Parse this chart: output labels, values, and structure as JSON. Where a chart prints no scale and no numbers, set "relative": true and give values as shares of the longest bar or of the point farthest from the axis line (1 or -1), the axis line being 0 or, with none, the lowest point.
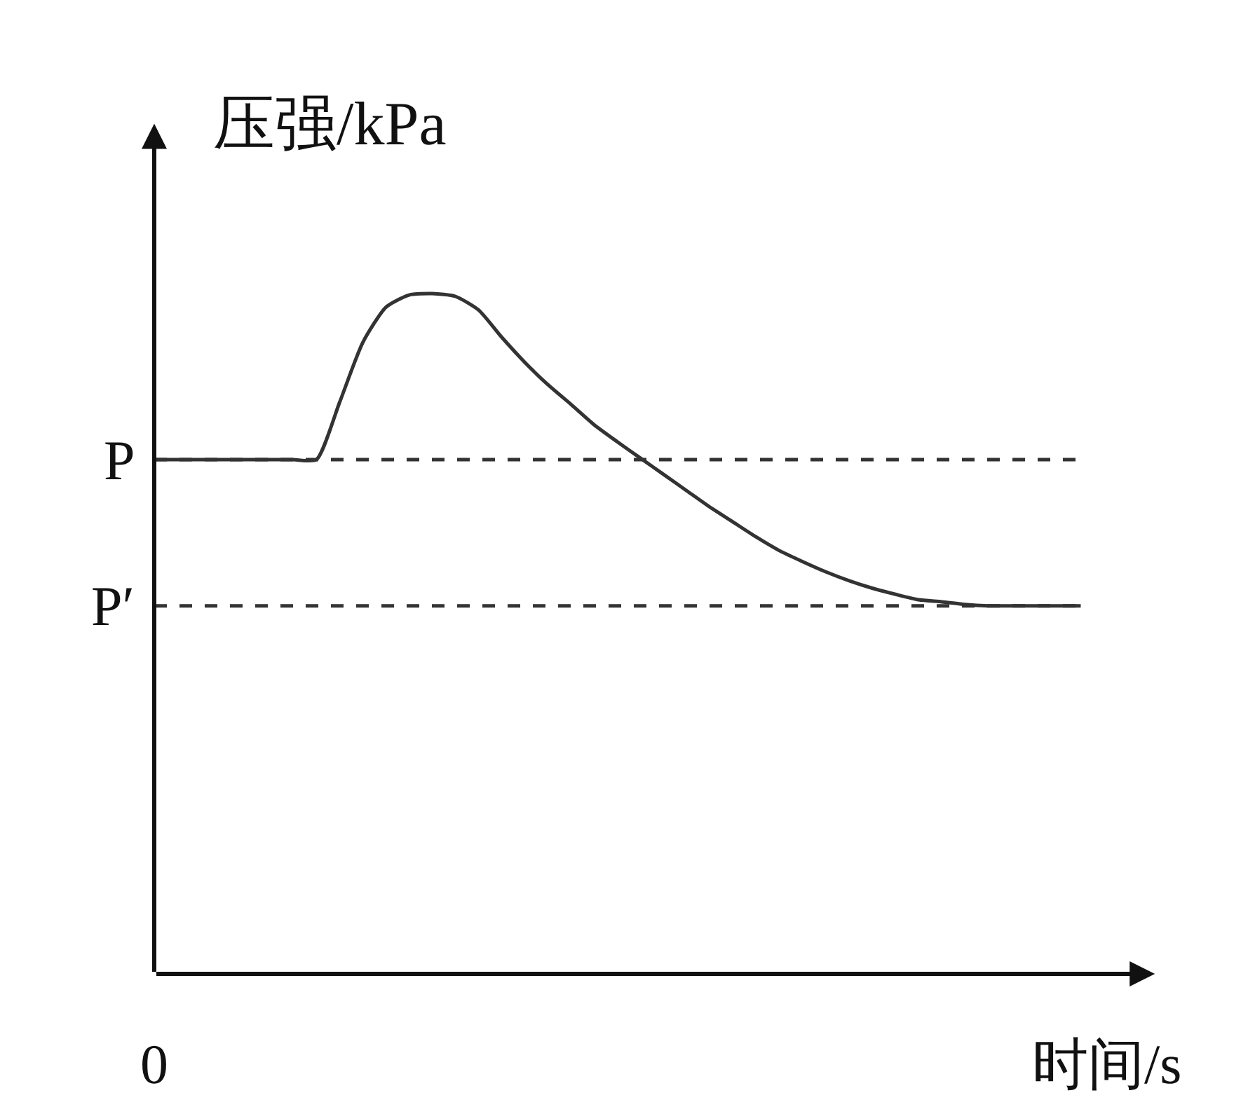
{
  "chart_data": {
    "type": "line",
    "relative": true,
    "xlabel": "时间/s",
    "ylabel": "压强/kPa",
    "categories": [
      null,
      null,
      null,
      null,
      null,
      null,
      null,
      null,
      null,
      null,
      null,
      null,
      null,
      null,
      null,
      null,
      null,
      null,
      null,
      null,
      null,
      null,
      null,
      null,
      null,
      null,
      null,
      null,
      null,
      null,
      null,
      null,
      null,
      null,
      null,
      null,
      null,
      null,
      null,
      null,
      null
    ],
    "series": [
      {
        "color": "#333333",
        "values": [
          0.756,
          0.756,
          0.756,
          0.756,
          0.756,
          0.756,
          0.756,
          0.756,
          0.84,
          0.928,
          0.98,
          0.998,
          1,
          0.996,
          0.976,
          0.936,
          0.899,
          0.866,
          0.837,
          0.807,
          0.782,
          0.758,
          0.734,
          0.71,
          0.686,
          0.664,
          0.642,
          0.622,
          0.606,
          0.591,
          0.578,
          0.567,
          0.558,
          0.55,
          0.547,
          0.543,
          0.541,
          0.541,
          0.541,
          0.541,
          0.541
        ]
      }
    ],
    "ref_lines": [
      {
        "axis": "y",
        "value": 0.756,
        "label": "P",
        "line_style": "dashed",
        "color": "#333333"
      },
      {
        "axis": "y",
        "value": 0.541,
        "label": "P′",
        "line_style": "dashed",
        "color": "#333333"
      }
    ],
    "annotations": [
      "0"
    ],
    "marker": "none",
    "line_style": "solid"
  }
}
